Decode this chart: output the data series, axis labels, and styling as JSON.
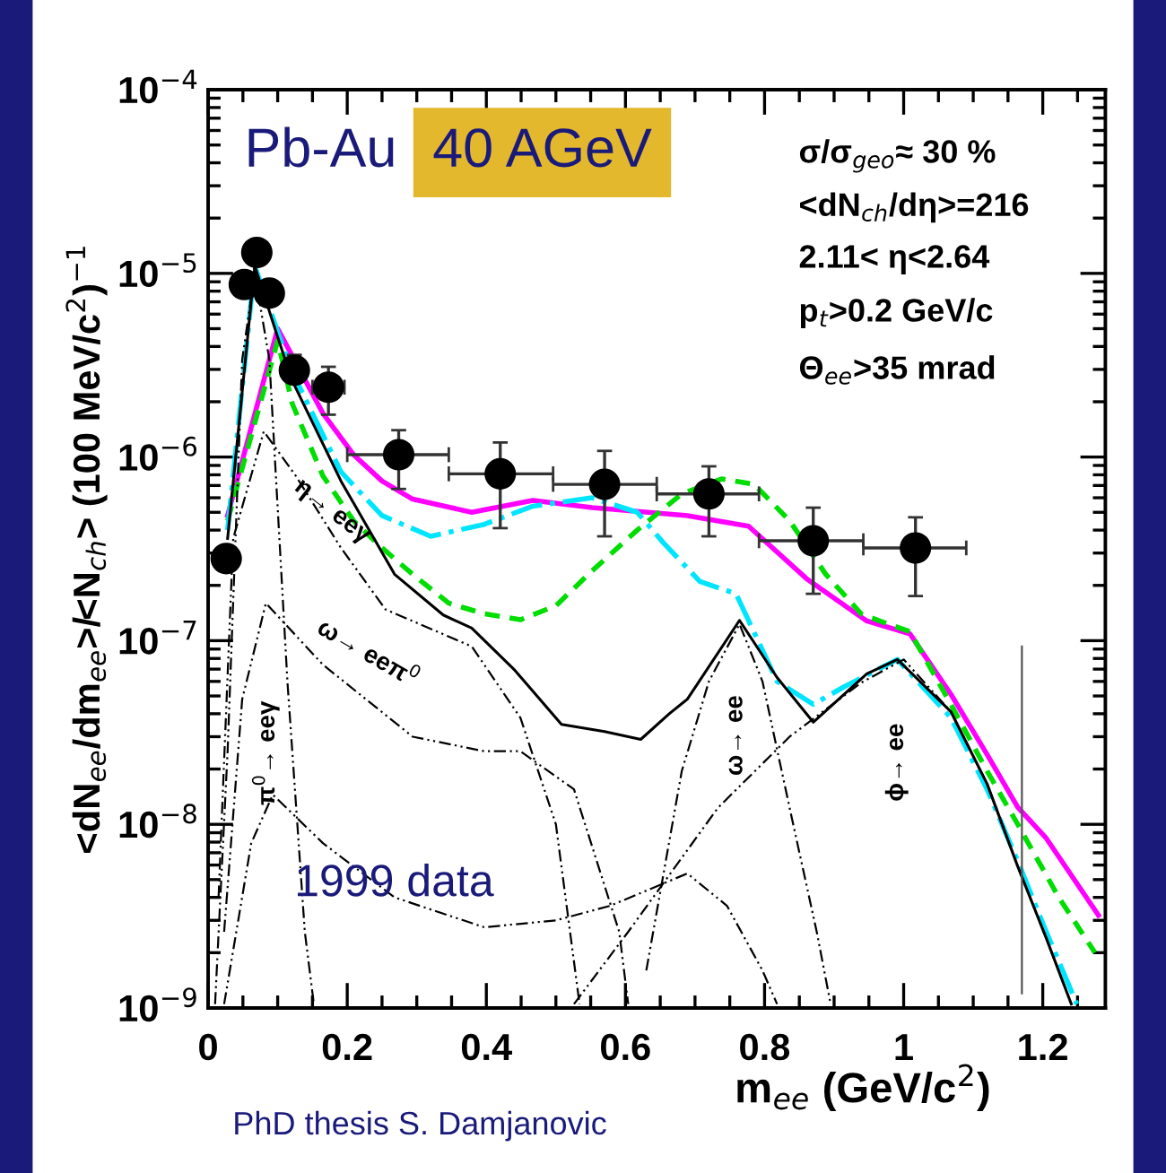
{
  "chart_data": {
    "type": "line",
    "title": "Pb-Au",
    "subtitle": "40 AGeV",
    "xlabel": "m$_{ee}$ (GeV/c$^{2}$)",
    "ylabel": "<dN$_{ee}$/dm$_{ee}$>/<N$_{ch}$> (100 MeV/c$^{2}$)$^{−1}$",
    "xlim": [
      0,
      1.29
    ],
    "xticks": [
      0,
      0.2,
      0.4,
      0.6,
      0.8,
      1,
      1.2
    ],
    "ylim": [
      1e-09,
      0.0001
    ],
    "yticks": [
      {
        "value": 1e-09,
        "label": "10$^{−9}$"
      },
      {
        "value": 1e-08,
        "label": "10$^{−8}$"
      },
      {
        "value": 1e-07,
        "label": "10$^{−7}$"
      },
      {
        "value": 1e-06,
        "label": "10$^{−6}$"
      },
      {
        "value": 1e-05,
        "label": "10$^{−5}$"
      },
      {
        "value": 0.0001,
        "label": "10$^{−4}$"
      }
    ],
    "log": "y",
    "grid": false,
    "legend": false,
    "annotations": [
      "σ/σ$_{geo}$≈ 30 %",
      "<dN$_{ch}$/dη>=216",
      "2.11< η<2.64",
      "p$_{t}$>0.2 GeV/c",
      "Θ$_{ee}$>35 mrad",
      "1999 data",
      "PhD thesis S. Damjanovic",
      "η→ eeγ",
      "ω→ eeπ$^{0}$",
      "π$^{0}$→ eeγ",
      "ω→ ee",
      "ϕ→ ee"
    ],
    "series": [
      {
        "color": "#ff00ff",
        "line_style": "solid",
        "x": [
          0.028,
          0.1,
          0.165,
          0.209,
          0.25,
          0.294,
          0.379,
          0.467,
          0.552,
          0.689,
          0.777,
          0.862,
          0.947,
          1.009,
          1.068,
          1.12,
          1.164,
          1.205,
          1.28
        ],
        "values": [
          4.8e-07,
          5e-06,
          1.73e-06,
          1.03e-06,
          7.4e-07,
          5.9e-07,
          5e-07,
          5.8e-07,
          5.3e-07,
          4.8e-07,
          4.2e-07,
          2.15e-07,
          1.28e-07,
          1.09e-07,
          5.1e-08,
          2.4e-08,
          1.24e-08,
          8.4e-09,
          3.2e-09
        ]
      },
      {
        "color": "#00dd00",
        "line_style": "dashed",
        "x": [
          0.028,
          0.1,
          0.121,
          0.165,
          0.209,
          0.25,
          0.294,
          0.346,
          0.397,
          0.449,
          0.5,
          0.552,
          0.617,
          0.681,
          0.738,
          0.785,
          0.836,
          0.888,
          0.939,
          0.978,
          1.009,
          1.068,
          1.12,
          1.164,
          1.223,
          1.275
        ],
        "values": [
          4.5e-07,
          4.3e-06,
          1.95e-06,
          7.9e-07,
          4.5e-07,
          3.2e-07,
          2.3e-07,
          1.6e-07,
          1.4e-07,
          1.3e-07,
          1.55e-07,
          2.4e-07,
          4e-07,
          6.3e-07,
          7.6e-07,
          7.1e-07,
          4.5e-07,
          2.3e-07,
          1.4e-07,
          1.23e-07,
          1.12e-07,
          4.5e-08,
          1.95e-08,
          1e-08,
          4e-09,
          2e-09
        ]
      },
      {
        "color": "#00e5ff",
        "line_style": "dashdot",
        "x": [
          0.028,
          0.067,
          0.1,
          0.121,
          0.191,
          0.25,
          0.32,
          0.397,
          0.467,
          0.552,
          0.617,
          0.655,
          0.707,
          0.759,
          0.818,
          0.87,
          0.914,
          0.991,
          1.068,
          1.12,
          1.164,
          1.205,
          1.249
        ],
        "values": [
          4e-07,
          1.1e-05,
          4.8e-06,
          2.9e-06,
          8.3e-07,
          4.8e-07,
          3.7e-07,
          4.3e-07,
          5.4e-07,
          6e-07,
          5e-07,
          3.4e-07,
          2.1e-07,
          1.8e-07,
          6e-08,
          4.5e-08,
          5.6e-08,
          7.9e-08,
          3.8e-08,
          1.55e-08,
          6.3e-09,
          2.6e-09,
          1.05e-09
        ]
      },
      {
        "color": "#000000",
        "line_style": "solid",
        "x": [
          0.028,
          0.067,
          0.1,
          0.121,
          0.191,
          0.268,
          0.338,
          0.379,
          0.441,
          0.508,
          0.57,
          0.622,
          0.663,
          0.689,
          0.764,
          0.818,
          0.87,
          0.947,
          0.991,
          1.068,
          1.12,
          1.164,
          1.205,
          1.241
        ],
        "values": [
          3.6e-07,
          1.1e-05,
          4.5e-06,
          2.6e-06,
          7.4e-07,
          2.3e-07,
          1.38e-07,
          1.17e-07,
          6.9e-08,
          3.5e-08,
          3.2e-08,
          2.9e-08,
          4e-08,
          4.8e-08,
          1.29e-07,
          6.3e-08,
          3.6e-08,
          6.6e-08,
          7.9e-08,
          4.1e-08,
          1.66e-08,
          5.9e-09,
          2.4e-09,
          1.05e-09
        ]
      },
      {
        "color": "#000000",
        "line_style": "dashdot",
        "x": [
          0.01,
          0.028,
          0.049,
          0.067,
          0.088,
          0.114,
          0.139,
          0.152
        ],
        "values": [
          1.05e-09,
          2.5e-08,
          3.4e-06,
          1e-05,
          3.4e-06,
          6e-08,
          2.6e-09,
          1.05e-09
        ]
      },
      {
        "color": "#000000",
        "line_style": "dashdot",
        "x": [
          0.015,
          0.036,
          0.08,
          0.126,
          0.191,
          0.255,
          0.379,
          0.449,
          0.5,
          0.534
        ],
        "values": [
          4e-09,
          3.6e-07,
          1.38e-06,
          7.9e-07,
          3.2e-07,
          1.48e-07,
          9.3e-08,
          3.8e-08,
          1e-08,
          1.05e-09
        ]
      },
      {
        "color": "#000000",
        "line_style": "dashdot",
        "x": [
          0.023,
          0.049,
          0.083,
          0.165,
          0.294,
          0.397,
          0.449,
          0.526,
          0.591,
          0.604
        ],
        "values": [
          2.6e-09,
          4.8e-08,
          1.6e-07,
          7.4e-08,
          3e-08,
          2.5e-08,
          2.5e-08,
          1.55e-08,
          2.6e-09,
          1.05e-09
        ]
      },
      {
        "color": "#000000",
        "line_style": "dashdot",
        "x": [
          0.023,
          0.062,
          0.093,
          0.165,
          0.268,
          0.397,
          0.5,
          0.578,
          0.689,
          0.746,
          0.797,
          0.818
        ],
        "values": [
          1.05e-09,
          7.9e-09,
          1.45e-08,
          7.9e-09,
          4e-09,
          2.75e-09,
          3e-09,
          3.6e-09,
          5.4e-09,
          3.6e-09,
          1.6e-09,
          1.05e-09
        ]
      },
      {
        "color": "#000000",
        "line_style": "dashdot",
        "x": [
          0.63,
          0.681,
          0.72,
          0.764,
          0.797,
          0.836,
          0.875,
          0.895
        ],
        "values": [
          1.6e-09,
          1.95e-08,
          6e-08,
          1.23e-07,
          6e-08,
          1.23e-08,
          2.6e-09,
          1.05e-09
        ]
      },
      {
        "color": "#000000",
        "line_style": "dashdot",
        "x": [
          0.526,
          0.604,
          0.733,
          0.836,
          0.939,
          1.0,
          1.068,
          1.12,
          1.164,
          1.205,
          1.241
        ],
        "values": [
          1.05e-09,
          2.6e-09,
          1.23e-08,
          3e-08,
          5.9e-08,
          7.9e-08,
          4.1e-08,
          1.66e-08,
          5.9e-09,
          2.4e-09,
          1.05e-09
        ]
      },
      {
        "color": "#555555",
        "line_style": "solid",
        "x": [
          1.17,
          1.17
        ],
        "values": [
          1.2e-09,
          9.3e-08
        ]
      },
      {
        "type": "scatter",
        "color": "#000000",
        "marker": "circle",
        "x": [
          0.026,
          0.052,
          0.07,
          0.088,
          0.124,
          0.173,
          0.274,
          0.42,
          0.57,
          0.72,
          0.87,
          1.017
        ],
        "values": [
          2.8e-07,
          8.7e-06,
          1.3e-05,
          7.8e-06,
          2.97e-06,
          2.4e-06,
          1.03e-06,
          8.1e-07,
          7.1e-07,
          6.3e-07,
          3.5e-07,
          3.2e-07
        ],
        "errors": [
          null,
          null,
          null,
          null,
          [
            2.6e-06,
            3.6e-06
          ],
          [
            1.7e-06,
            3.1e-06
          ],
          [
            6.7e-07,
            1.4e-06
          ],
          [
            4.1e-07,
            1.2e-06
          ],
          [
            3.7e-07,
            1.08e-06
          ],
          [
            3.7e-07,
            8.9e-07
          ],
          [
            1.8e-07,
            5.3e-07
          ],
          [
            1.75e-07,
            4.7e-07
          ]
        ],
        "xerrors": [
          null,
          null,
          null,
          null,
          [
            0.108,
            0.137
          ],
          [
            0.15,
            0.196
          ],
          [
            0.2,
            0.346
          ],
          [
            0.346,
            0.496
          ],
          [
            0.496,
            0.645
          ],
          [
            0.645,
            0.792
          ],
          [
            0.792,
            0.942
          ],
          [
            0.942,
            1.09
          ]
        ]
      }
    ]
  }
}
